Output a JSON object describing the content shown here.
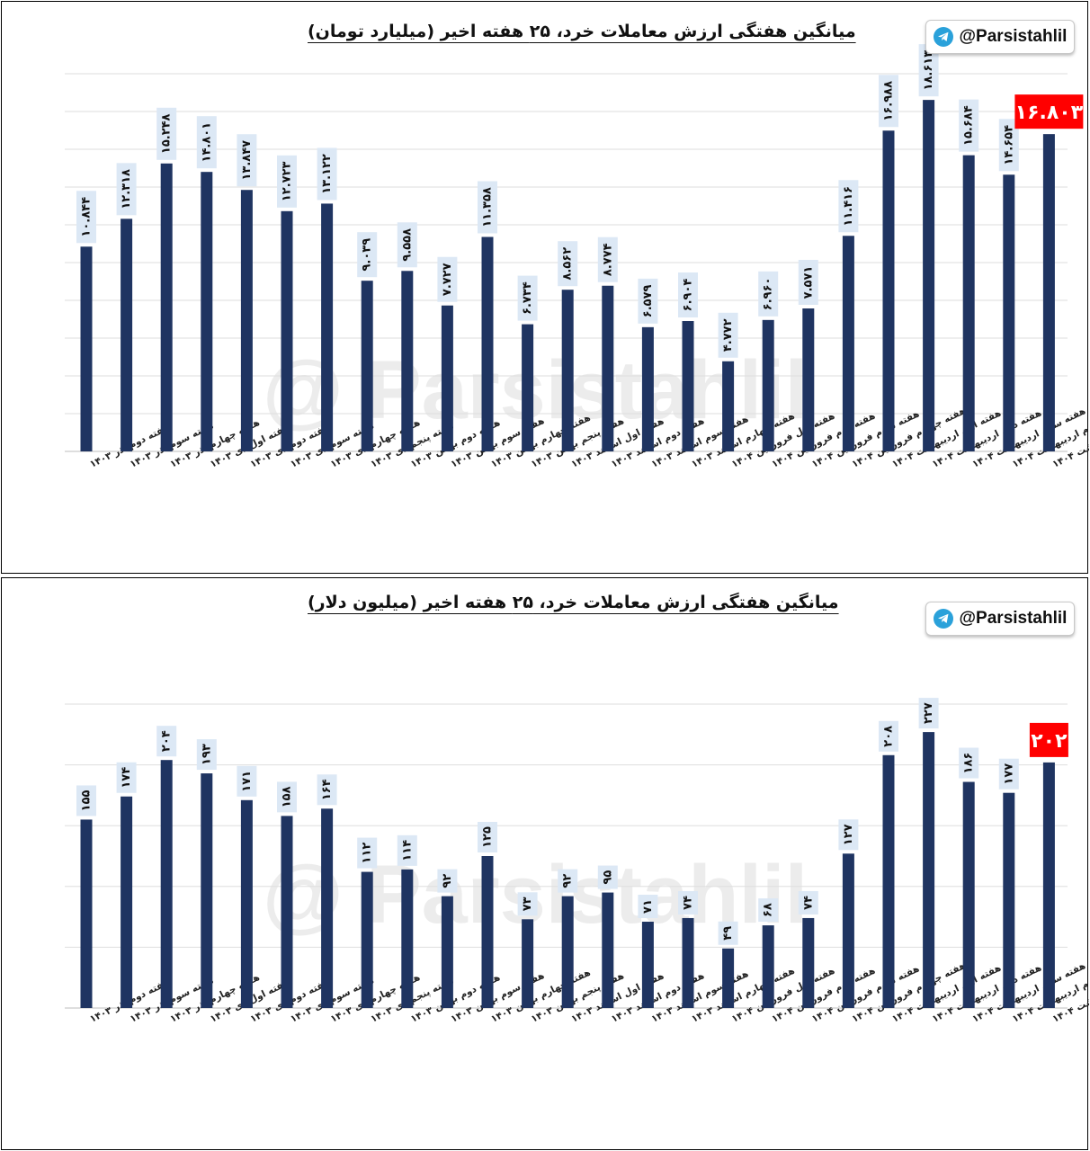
{
  "brand": {
    "handle": "@Parsistahlil",
    "watermark": "@Parsistahlil",
    "bar_color": "#1f3461",
    "highlight_color": "#ff0000",
    "label_bg": "#dce8f5"
  },
  "chart_data": [
    {
      "type": "bar",
      "title": "میانگین هفتگی ارزش معاملات خرد، ۲۵ هفته اخیر (میلیارد تومان)",
      "categories": [
        "هفته دوم آذر ۱۴۰۳",
        "هفته سوم آذر ۱۴۰۳",
        "هفته چهارم آذر ۱۴۰۳",
        "هفته اول دی ۱۴۰۳",
        "هفته دوم دی ۱۴۰۳",
        "هفته سوم دی ۱۴۰۳",
        "هفته چهارم دی ۱۴۰۳",
        "هفته پنجم دی ۱۴۰۳",
        "هفته دوم بهمن ۱۴۰۳",
        "هفته سوم بهمن ۱۴۰۳",
        "هفته چهارم بهمن ۱۴۰۳",
        "هفته پنجم بهمن ۱۴۰۳",
        "هفته اول اسفند ۱۴۰۳",
        "هفته دوم اسفند ۱۴۰۳",
        "هفته سوم اسفند ۱۴۰۳",
        "هفته چهارم اسفند ۱۴۰۳",
        "هفته اول فروردین ۱۴۰۴",
        "هفته دوم فروردین ۱۴۰۴",
        "هفته سوم فروردین ۱۴۰۴",
        "هفته چهارم فروردین ۱۴۰۴",
        "هفته اول اردیبهشت ۱۴۰۴",
        "هفته دوم اردیبهشت ۱۴۰۴",
        "هفته سوم اردیبهشت ۱۴۰۴",
        "هفته چهارم اردیبهشت ۱۴۰۴",
        "هفته پنجم اردیبهشت ۱۴۰۴"
      ],
      "values": [
        10.844,
        12.318,
        15.248,
        14.801,
        13.847,
        12.723,
        13.122,
        9.039,
        9.558,
        7.727,
        11.358,
        6.734,
        8.562,
        8.774,
        6.579,
        6.904,
        4.772,
        6.96,
        7.571,
        11.416,
        16.988,
        18.613,
        15.684,
        14.654,
        16.803
      ],
      "labels": [
        "۱۰.۸۴۴",
        "۱۲.۳۱۸",
        "۱۵.۲۴۸",
        "۱۴.۸۰۱",
        "۱۳.۸۴۷",
        "۱۲.۷۲۳",
        "۱۳.۱۲۲",
        "۹.۰۳۹",
        "۹.۵۵۸",
        "۷.۷۲۷",
        "۱۱.۳۵۸",
        "۶.۷۳۴",
        "۸.۵۶۲",
        "۸.۷۷۴",
        "۶.۵۷۹",
        "۶.۹۰۴",
        "۴.۷۷۲",
        "۶.۹۶۰",
        "۷.۵۷۱",
        "۱۱.۴۱۶",
        "۱۶.۹۸۸",
        "۱۸.۶۱۳",
        "۱۵.۶۸۴",
        "۱۴.۶۵۴",
        "۱۶.۸۰۳"
      ],
      "highlight_index": 24,
      "ylim": [
        0,
        20
      ],
      "grid": true,
      "legend": "none"
    },
    {
      "type": "bar",
      "title": "میانگین هفتگی ارزش معاملات خرد، ۲۵ هفته اخیر (میلیون دلار)",
      "categories": [
        "هفته دوم آذر ۱۴۰۳",
        "هفته سوم آذر ۱۴۰۳",
        "هفته چهارم آذر ۱۴۰۳",
        "هفته اول دی ۱۴۰۳",
        "هفته دوم دی ۱۴۰۳",
        "هفته سوم دی ۱۴۰۳",
        "هفته چهارم دی ۱۴۰۳",
        "هفته پنجم دی ۱۴۰۳",
        "هفته دوم بهمن ۱۴۰۳",
        "هفته سوم بهمن ۱۴۰۳",
        "هفته چهارم بهمن ۱۴۰۳",
        "هفته پنجم بهمن ۱۴۰۳",
        "هفته اول اسفند ۱۴۰۳",
        "هفته دوم اسفند ۱۴۰۳",
        "هفته سوم اسفند ۱۴۰۳",
        "هفته چهارم اسفند ۱۴۰۳",
        "هفته اول فروردین ۱۴۰۴",
        "هفته دوم فروردین ۱۴۰۴",
        "هفته سوم فروردین ۱۴۰۴",
        "هفته چهارم فروردین ۱۴۰۴",
        "هفته اول اردیبهشت ۱۴۰۴",
        "هفته دوم اردیبهشت ۱۴۰۴",
        "هفته سوم اردیبهشت ۱۴۰۴",
        "هفته چهارم اردیبهشت ۱۴۰۴",
        "هفته پنجم اردیبهشت ۱۴۰۴"
      ],
      "values": [
        155,
        174,
        204,
        193,
        171,
        158,
        164,
        112,
        114,
        92,
        125,
        73,
        92,
        95,
        71,
        74,
        49,
        68,
        74,
        127,
        208,
        227,
        186,
        177,
        202
      ],
      "labels": [
        "۱۵۵",
        "۱۷۴",
        "۲۰۴",
        "۱۹۳",
        "۱۷۱",
        "۱۵۸",
        "۱۶۴",
        "۱۱۲",
        "۱۱۴",
        "۹۲",
        "۱۲۵",
        "۷۳",
        "۹۲",
        "۹۵",
        "۷۱",
        "۷۴",
        "۴۹",
        "۶۸",
        "۷۴",
        "۱۲۷",
        "۲۰۸",
        "۲۲۷",
        "۱۸۶",
        "۱۷۷",
        "۲۰۲"
      ],
      "highlight_index": 24,
      "ylim": [
        0,
        250
      ],
      "grid": true,
      "legend": "none"
    }
  ]
}
